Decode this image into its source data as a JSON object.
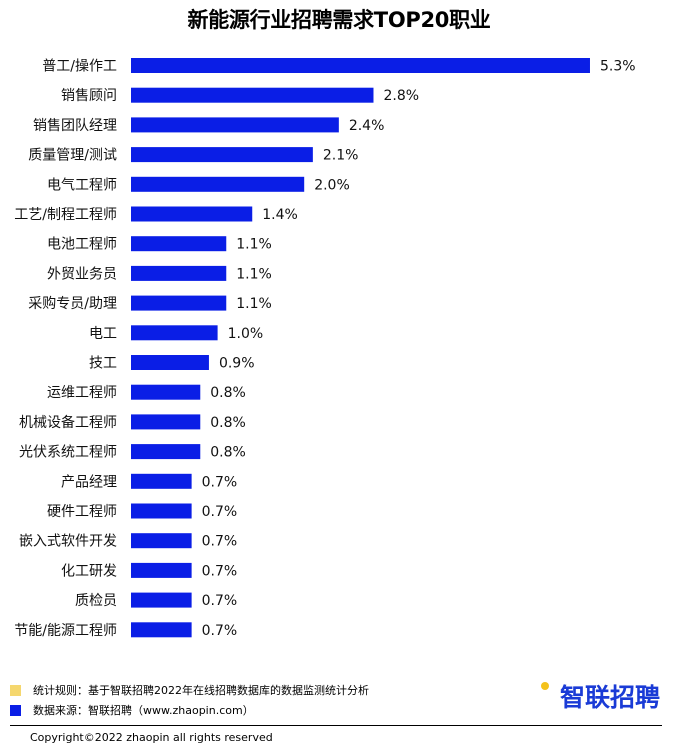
{
  "title": "新能源行业招聘需求TOP20职业",
  "chart_data": {
    "type": "bar",
    "orientation": "horizontal",
    "title": "新能源行业招聘需求TOP20职业",
    "categories": [
      "普工/操作工",
      "销售顾问",
      "销售团队经理",
      "质量管理/测试",
      "电气工程师",
      "工艺/制程工程师",
      "电池工程师",
      "外贸业务员",
      "采购专员/助理",
      "电工",
      "技工",
      "运维工程师",
      "机械设备工程师",
      "光伏系统工程师",
      "产品经理",
      "硬件工程师",
      "嵌入式软件开发",
      "化工研发",
      "质检员",
      "节能/能源工程师"
    ],
    "values": [
      5.3,
      2.8,
      2.4,
      2.1,
      2.0,
      1.4,
      1.1,
      1.1,
      1.1,
      1.0,
      0.9,
      0.8,
      0.8,
      0.8,
      0.7,
      0.7,
      0.7,
      0.7,
      0.7,
      0.7
    ],
    "labels": [
      "5.3%",
      "2.8%",
      "2.4%",
      "2.1%",
      "2.0%",
      "1.4%",
      "1.1%",
      "1.1%",
      "1.1%",
      "1.0%",
      "0.9%",
      "0.8%",
      "0.8%",
      "0.8%",
      "0.7%",
      "0.7%",
      "0.7%",
      "0.7%",
      "0.7%",
      "0.7%"
    ],
    "unit": "%",
    "bar_color": "#0a1ee6",
    "grid": false,
    "legend": "none"
  },
  "notes": [
    {
      "text": "统计规则：基于智联招聘2022年在线招聘数据库的数据监测统计分析",
      "color": "#f5d76e"
    },
    {
      "text": "数据来源：智联招聘（www.zhaopin.com）",
      "color": "#0a1ee6"
    }
  ],
  "logo": {
    "text": "智联招聘",
    "icon": "zhaopin-logo-icon",
    "color": "#1a3bd6",
    "dot_color": "#f4c21b"
  },
  "copyright": "Copyright©2022 zhaopin all rights reserved"
}
